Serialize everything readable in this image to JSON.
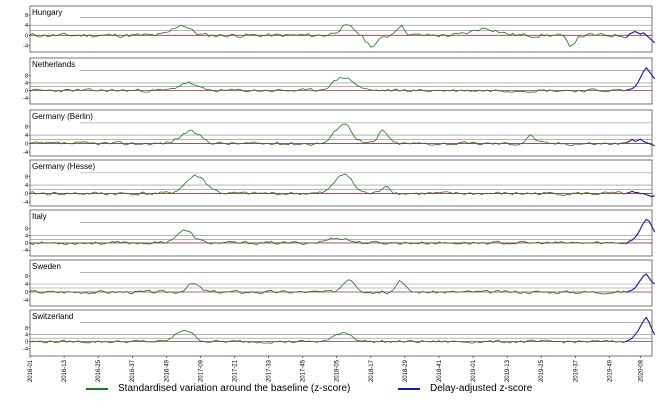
{
  "chart_data": {
    "type": "line",
    "colors": {
      "zscore": "#1a7a1a",
      "delay_adjusted": "#1a1aa8",
      "baseline": "#b22a4a",
      "threshold": "#888888"
    },
    "y_ticks": [
      "-4",
      "0",
      "4",
      "8"
    ],
    "baseline_value": 0,
    "threshold_values": [
      2,
      4
    ],
    "weeks_total": 220,
    "delay_start_week": 210,
    "x_ticks": [
      {
        "label": "2016-01",
        "week": 0
      },
      {
        "label": "2016-13",
        "week": 12
      },
      {
        "label": "2016-25",
        "week": 24
      },
      {
        "label": "2016-37",
        "week": 36
      },
      {
        "label": "2016-49",
        "week": 48
      },
      {
        "label": "2017-09",
        "week": 60
      },
      {
        "label": "2017-21",
        "week": 72
      },
      {
        "label": "2017-33",
        "week": 84
      },
      {
        "label": "2017-45",
        "week": 96
      },
      {
        "label": "2018-05",
        "week": 108
      },
      {
        "label": "2018-17",
        "week": 120
      },
      {
        "label": "2018-29",
        "week": 132
      },
      {
        "label": "2018-41",
        "week": 144
      },
      {
        "label": "2019-01",
        "week": 156
      },
      {
        "label": "2019-13",
        "week": 168
      },
      {
        "label": "2019-25",
        "week": 180
      },
      {
        "label": "2019-37",
        "week": 192
      },
      {
        "label": "2019-49",
        "week": 204
      },
      {
        "label": "2020-08",
        "week": 215
      }
    ],
    "legend": [
      {
        "label": "Standardised variation around the baseline (z-score)",
        "color": "#1a7a1a"
      },
      {
        "label": "Delay-adjusted z-score",
        "color": "#1a1aa8"
      }
    ],
    "panels": [
      {
        "name": "Hungary",
        "ylim": [
          -5,
          10
        ],
        "seed": 11,
        "peaks": [
          {
            "week": 53,
            "height": 3,
            "width": 4
          },
          {
            "week": 111,
            "height": 2.5,
            "width": 4
          },
          {
            "week": 130,
            "height": 3,
            "width": 2
          },
          {
            "week": 160,
            "height": 2,
            "width": 6
          },
          {
            "week": 120,
            "height": -3,
            "width": 3
          },
          {
            "week": 190,
            "height": -3,
            "width": 2
          }
        ],
        "delay": [
          0.5,
          1,
          1.5,
          1,
          0.5,
          1,
          0,
          -1,
          -2,
          -3
        ]
      },
      {
        "name": "Netherlands",
        "ylim": [
          -5,
          15
        ],
        "seed": 23,
        "peaks": [
          {
            "week": 55,
            "height": 3,
            "width": 4
          },
          {
            "week": 110,
            "height": 5,
            "width": 5
          }
        ],
        "delay": [
          0.5,
          1,
          2,
          4,
          7,
          10,
          12,
          10,
          8,
          6
        ]
      },
      {
        "name": "Germany (Berlin)",
        "ylim": [
          -4,
          14
        ],
        "seed": 37,
        "peaks": [
          {
            "week": 56,
            "height": 4,
            "width": 5
          },
          {
            "week": 110,
            "height": 7,
            "width": 4
          },
          {
            "week": 124,
            "height": 5,
            "width": 2
          },
          {
            "week": 176,
            "height": 3,
            "width": 2
          }
        ],
        "delay": [
          1,
          2,
          1,
          1.5,
          2,
          1,
          0.5,
          0,
          -0.5,
          -1
        ]
      },
      {
        "name": "Germany (Hesse)",
        "ylim": [
          -4,
          14
        ],
        "seed": 41,
        "peaks": [
          {
            "week": 58,
            "height": 6,
            "width": 5
          },
          {
            "week": 110,
            "height": 7,
            "width": 4
          },
          {
            "week": 125,
            "height": 3,
            "width": 2
          }
        ],
        "delay": [
          0.5,
          1,
          0.5,
          0.5,
          0,
          0,
          -0.5,
          -1,
          -1.5,
          -1
        ]
      },
      {
        "name": "Italy",
        "ylim": [
          -5,
          16
        ],
        "seed": 53,
        "peaks": [
          {
            "week": 54,
            "height": 5,
            "width": 4
          },
          {
            "week": 108,
            "height": 2,
            "width": 5
          }
        ],
        "delay": [
          1,
          1.5,
          3,
          5,
          8,
          11,
          13,
          12,
          9,
          6
        ]
      },
      {
        "name": "Sweden",
        "ylim": [
          -5,
          14
        ],
        "seed": 67,
        "peaks": [
          {
            "week": 57,
            "height": 3,
            "width": 3
          },
          {
            "week": 112,
            "height": 5,
            "width": 3
          },
          {
            "week": 130,
            "height": 4,
            "width": 2
          }
        ],
        "delay": [
          0.5,
          1,
          2,
          4,
          6,
          8,
          9,
          7,
          5,
          4
        ]
      },
      {
        "name": "Switzerland",
        "ylim": [
          -6,
          16
        ],
        "seed": 79,
        "peaks": [
          {
            "week": 54,
            "height": 5,
            "width": 4
          },
          {
            "week": 110,
            "height": 4,
            "width": 4
          }
        ],
        "delay": [
          1,
          2,
          4,
          6,
          9,
          12,
          14,
          11,
          7,
          4
        ]
      }
    ]
  }
}
